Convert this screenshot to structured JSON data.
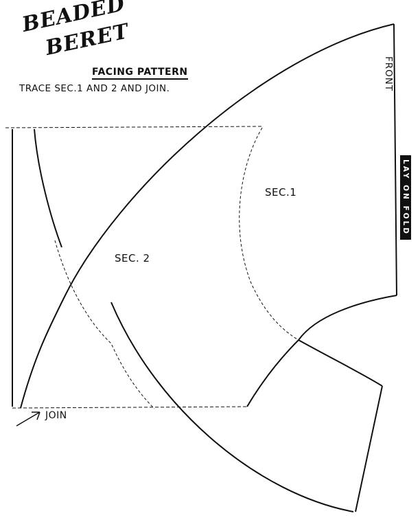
{
  "title": {
    "line1": "BEADED",
    "line2": "BERET"
  },
  "heading": "FACING PATTERN",
  "instruction": "TRACE SEC.1 AND 2 AND JOIN.",
  "labels": {
    "sec1": "SEC.1",
    "sec2": "SEC. 2",
    "front": "FRONT",
    "fold": "LAY ON FOLD",
    "join": "JOIN"
  },
  "colors": {
    "ink": "#111111",
    "paper": "#ffffff"
  }
}
